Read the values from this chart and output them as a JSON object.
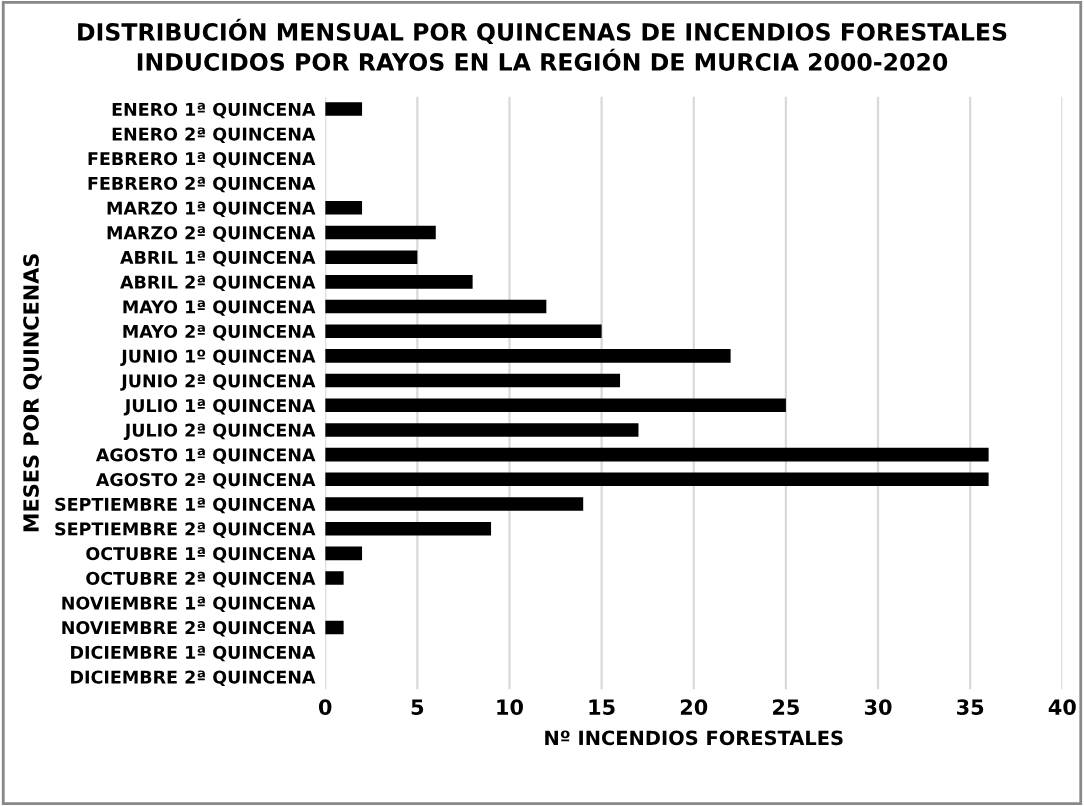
{
  "chart_data": {
    "type": "bar",
    "orientation": "horizontal",
    "title": "DISTRIBUCIÓN MENSUAL POR QUINCENAS DE INCENDIOS FORESTALES\nINDUCIDOS POR RAYOS EN LA REGIÓN DE MURCIA 2000-2020",
    "xlabel": "Nº INCENDIOS FORESTALES",
    "ylabel": "MESES POR QUINCENAS",
    "categories": [
      "ENERO 1ª QUINCENA",
      "ENERO 2ª QUINCENA",
      "FEBRERO 1ª QUINCENA",
      "FEBRERO 2ª QUINCENA",
      "MARZO 1ª QUINCENA",
      "MARZO 2ª QUINCENA",
      "ABRIL 1ª QUINCENA",
      "ABRIL 2ª QUINCENA",
      "MAYO 1ª QUINCENA",
      "MAYO 2ª QUINCENA",
      "JUNIO 1º QUINCENA",
      "JUNIO 2ª QUINCENA",
      "JULIO 1ª QUINCENA",
      "JULIO 2ª QUINCENA",
      "AGOSTO 1ª QUINCENA",
      "AGOSTO 2ª QUINCENA",
      "SEPTIEMBRE 1ª QUINCENA",
      "SEPTIEMBRE 2ª QUINCENA",
      "OCTUBRE 1ª QUINCENA",
      "OCTUBRE 2ª QUINCENA",
      "NOVIEMBRE 1ª QUINCENA",
      "NOVIEMBRE 2ª QUINCENA",
      "DICIEMBRE 1ª QUINCENA",
      "DICIEMBRE 2ª QUINCENA"
    ],
    "values": [
      2,
      0,
      0,
      0,
      2,
      6,
      5,
      8,
      12,
      15,
      22,
      16,
      25,
      17,
      36,
      36,
      14,
      9,
      2,
      1,
      0,
      1,
      0,
      0
    ],
    "color": "#000000",
    "xlim": [
      0,
      40
    ],
    "xticks": [
      0,
      5,
      10,
      15,
      20,
      25,
      30,
      35,
      40
    ],
    "grid": "x",
    "legend": false
  }
}
